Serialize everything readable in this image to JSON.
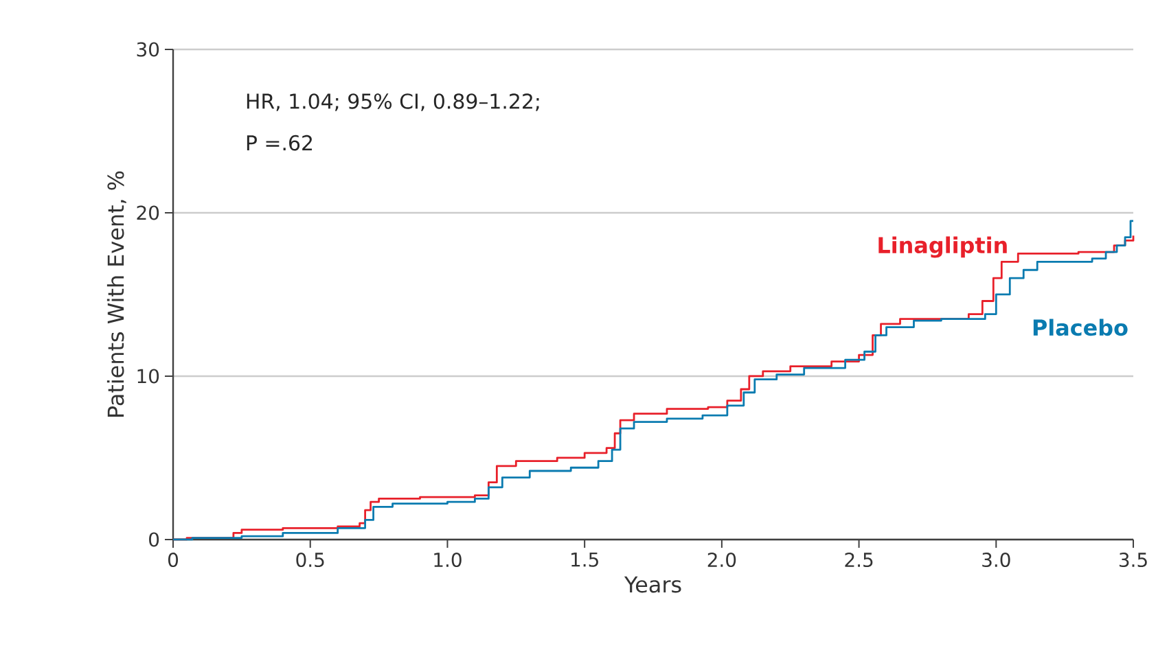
{
  "chart_data": {
    "type": "step",
    "xlabel": "Years",
    "ylabel": "Patients With Event, %",
    "annotations": [
      "HR, 1.04; 95% CI, 0.89–1.22;",
      "P =.62"
    ],
    "xlim": [
      0,
      3.5
    ],
    "ylim": [
      0,
      30
    ],
    "xticks": [
      0,
      {
        "value": 0.5,
        "label": "0.5"
      },
      {
        "value": 1,
        "label": "1.0"
      },
      {
        "value": 1.5,
        "label": "1.5"
      },
      {
        "value": 2,
        "label": "2.0"
      },
      {
        "value": 2.5,
        "label": "2.5"
      },
      {
        "value": 3,
        "label": "3.0"
      },
      {
        "value": 3.5,
        "label": "3.5"
      }
    ],
    "yticks": [
      0,
      10,
      20,
      30
    ],
    "grid": "y",
    "series": [
      {
        "name": "Linagliptin",
        "color": "#e8202a",
        "x": [
          0,
          0.05,
          0.22,
          0.25,
          0.4,
          0.6,
          0.68,
          0.7,
          0.72,
          0.75,
          0.9,
          1.1,
          1.15,
          1.18,
          1.25,
          1.4,
          1.5,
          1.58,
          1.61,
          1.63,
          1.68,
          1.8,
          1.95,
          2.02,
          2.07,
          2.1,
          2.15,
          2.25,
          2.4,
          2.5,
          2.55,
          2.58,
          2.65,
          2.9,
          2.95,
          2.99,
          3.02,
          3.08,
          3.3,
          3.43,
          3.47,
          3.5
        ],
        "values": [
          0,
          0.1,
          0.4,
          0.6,
          0.7,
          0.8,
          1.0,
          1.8,
          2.3,
          2.5,
          2.6,
          2.7,
          3.5,
          4.5,
          4.8,
          5.0,
          5.3,
          5.6,
          6.5,
          7.3,
          7.7,
          8.0,
          8.1,
          8.5,
          9.2,
          10.0,
          10.3,
          10.6,
          10.9,
          11.3,
          12.5,
          13.2,
          13.5,
          13.8,
          14.6,
          16.0,
          17.0,
          17.5,
          17.6,
          18.0,
          18.3,
          18.6
        ]
      },
      {
        "name": "Placebo",
        "color": "#0a7bb0",
        "x": [
          0,
          0.07,
          0.25,
          0.4,
          0.6,
          0.7,
          0.73,
          0.8,
          1.0,
          1.1,
          1.15,
          1.2,
          1.3,
          1.45,
          1.55,
          1.6,
          1.63,
          1.68,
          1.8,
          1.93,
          2.02,
          2.08,
          2.12,
          2.2,
          2.3,
          2.45,
          2.52,
          2.56,
          2.6,
          2.7,
          2.8,
          2.96,
          3.0,
          3.05,
          3.1,
          3.15,
          3.35,
          3.4,
          3.44,
          3.47,
          3.49,
          3.5
        ],
        "values": [
          0,
          0.1,
          0.2,
          0.4,
          0.7,
          1.2,
          2.0,
          2.2,
          2.3,
          2.5,
          3.2,
          3.8,
          4.2,
          4.4,
          4.8,
          5.5,
          6.8,
          7.2,
          7.4,
          7.6,
          8.2,
          9.0,
          9.8,
          10.1,
          10.5,
          11.0,
          11.5,
          12.5,
          13.0,
          13.4,
          13.5,
          13.8,
          15.0,
          16.0,
          16.5,
          17.0,
          17.2,
          17.6,
          18.0,
          18.5,
          19.5,
          19.5
        ]
      }
    ]
  }
}
